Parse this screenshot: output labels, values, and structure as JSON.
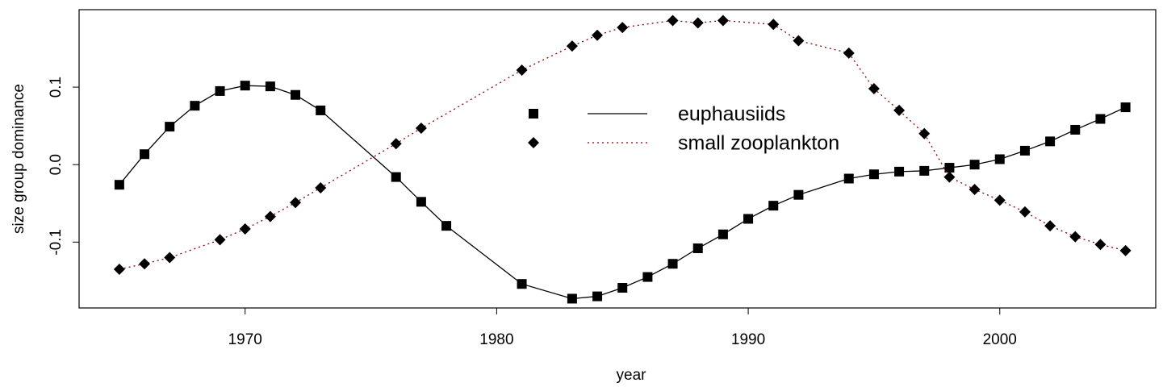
{
  "chart_data": {
    "type": "line",
    "xlabel": "year",
    "ylabel": "size group dominance",
    "xlim": [
      1963.4,
      2006.2
    ],
    "ylim": [
      -0.185,
      0.2
    ],
    "xticks": [
      1970,
      1980,
      1990,
      2000
    ],
    "yticks": [
      -0.1,
      {
        "value": 0,
        "label": "0.0"
      },
      0.1
    ],
    "legend": "top",
    "series": [
      {
        "name": "euphausiids",
        "color": "#000000",
        "line_color": "#000000",
        "linestyle": "solid",
        "marker": "square",
        "x": [
          1965,
          1966,
          1967,
          1968,
          1969,
          1970,
          1971,
          1972,
          1973,
          1976,
          1977,
          1978,
          1981,
          1983,
          1984,
          1985,
          1986,
          1987,
          1988,
          1989,
          1990,
          1991,
          1992,
          1994,
          1995,
          1996,
          1997,
          1998,
          1999,
          2000,
          2001,
          2002,
          2003,
          2004,
          2005
        ],
        "values": [
          -0.026,
          0.0135,
          0.049,
          0.076,
          0.095,
          0.102,
          0.101,
          0.09,
          0.07,
          -0.016,
          -0.048,
          -0.079,
          -0.154,
          -0.173,
          -0.17,
          -0.159,
          -0.145,
          -0.128,
          -0.108,
          -0.09,
          -0.07,
          -0.053,
          -0.039,
          -0.018,
          -0.0125,
          -0.009,
          -0.008,
          -0.004,
          0.0,
          0.007,
          0.018,
          0.03,
          0.045,
          0.059,
          0.074
        ]
      },
      {
        "name": "small zooplankton",
        "color": "#000000",
        "line_color": "#8b0000",
        "linestyle": "dotted",
        "marker": "diamond",
        "x": [
          1965,
          1966,
          1967,
          1969,
          1970,
          1971,
          1972,
          1973,
          1976,
          1977,
          1981,
          1983,
          1984,
          1985,
          1987,
          1988,
          1989,
          1991,
          1992,
          1994,
          1995,
          1996,
          1997,
          1998,
          1999,
          2000,
          2001,
          2002,
          2003,
          2004,
          2005
        ],
        "values": [
          -0.135,
          -0.128,
          -0.12,
          -0.097,
          -0.083,
          -0.067,
          -0.049,
          -0.03,
          0.027,
          0.047,
          0.122,
          0.153,
          0.167,
          0.177,
          0.186,
          0.183,
          0.186,
          0.181,
          0.16,
          0.144,
          0.098,
          0.07,
          0.04,
          -0.016,
          -0.032,
          -0.046,
          -0.061,
          -0.079,
          -0.093,
          -0.103,
          -0.111
        ]
      }
    ]
  }
}
